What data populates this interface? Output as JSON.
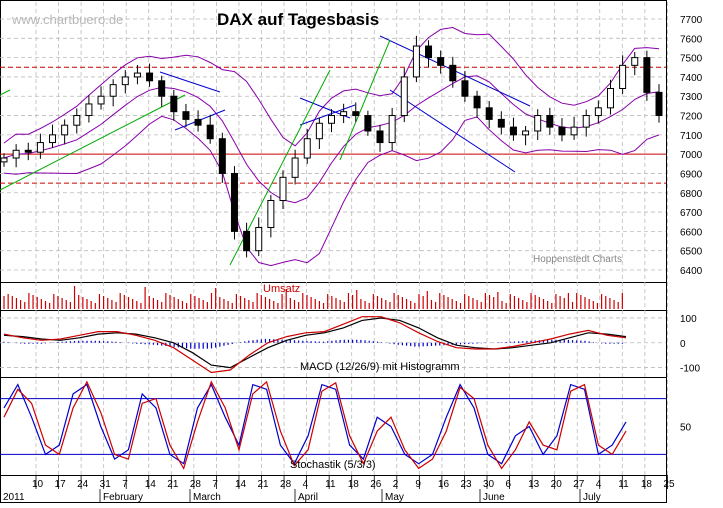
{
  "chart_data": [
    {
      "type": "candlestick",
      "title": "DAX auf Tagesbasis",
      "y_ticks": [
        6400,
        6500,
        6600,
        6700,
        6800,
        6900,
        7000,
        7100,
        7200,
        7300,
        7400,
        7500,
        7600,
        7700
      ],
      "ylim": [
        6400,
        7750
      ],
      "grid": true,
      "approx_closes": [
        6980,
        7020,
        7010,
        7060,
        7100,
        7150,
        7200,
        7260,
        7300,
        7360,
        7400,
        7420,
        7380,
        7300,
        7220,
        7180,
        7150,
        7080,
        6900,
        6600,
        6500,
        6620,
        6760,
        6880,
        6980,
        7080,
        7160,
        7200,
        7220,
        7200,
        7120,
        7060,
        7200,
        7400,
        7560,
        7500,
        7460,
        7380,
        7300,
        7240,
        7180,
        7140,
        7100,
        7120,
        7200,
        7140,
        7100,
        7140,
        7200,
        7240,
        7340,
        7460,
        7500,
        7320,
        7200
      ],
      "horizontal_levels": [
        {
          "value": 7450,
          "style": "dashed",
          "color": "#cc0000"
        },
        {
          "value": 7000,
          "style": "solid",
          "color": "#cc0000"
        },
        {
          "value": 6850,
          "style": "dashed",
          "color": "#cc0000"
        }
      ],
      "overlays": [
        "Bollinger bands (purple)",
        "trend lines (blue, green)"
      ]
    },
    {
      "type": "bar",
      "title": "Umsatz"
    },
    {
      "type": "line",
      "title": "MACD (12/26/9) mit Histogramm",
      "y_ticks": [
        100,
        0,
        -100
      ],
      "ylim": [
        -130,
        120
      ],
      "series": [
        {
          "color": "#000000",
          "values": [
            30,
            25,
            15,
            10,
            20,
            35,
            40,
            35,
            20,
            0,
            -40,
            -90,
            -100,
            -60,
            -20,
            10,
            30,
            40,
            60,
            90,
            100,
            90,
            60,
            20,
            -10,
            -20,
            -25,
            -20,
            -10,
            0,
            20,
            40,
            35,
            25
          ]
        },
        {
          "color": "#cc0000",
          "values": [
            35,
            20,
            10,
            15,
            30,
            45,
            45,
            30,
            10,
            -20,
            -70,
            -120,
            -110,
            -50,
            0,
            25,
            40,
            45,
            75,
            105,
            105,
            80,
            40,
            5,
            -20,
            -25,
            -25,
            -15,
            0,
            15,
            35,
            50,
            30,
            20
          ]
        }
      ]
    },
    {
      "type": "line",
      "title": "Stochastik (5/3/3)",
      "y_ticks": [
        50
      ],
      "ylim": [
        0,
        100
      ],
      "reference_levels": [
        80,
        20
      ],
      "series": [
        {
          "color": "#0000cc",
          "values": [
            70,
            95,
            60,
            20,
            30,
            85,
            95,
            50,
            15,
            25,
            85,
            70,
            20,
            10,
            70,
            95,
            60,
            30,
            95,
            90,
            30,
            10,
            40,
            95,
            90,
            30,
            15,
            60,
            50,
            20,
            10,
            20,
            60,
            95,
            70,
            20,
            10,
            40,
            50,
            20,
            40,
            95,
            90,
            20,
            30,
            55
          ]
        },
        {
          "color": "#cc0000",
          "values": [
            60,
            90,
            75,
            30,
            20,
            70,
            98,
            65,
            20,
            15,
            75,
            80,
            30,
            5,
            55,
            98,
            70,
            25,
            85,
            98,
            45,
            8,
            25,
            88,
            97,
            40,
            10,
            45,
            60,
            25,
            5,
            15,
            45,
            92,
            80,
            30,
            5,
            25,
            55,
            30,
            25,
            88,
            95,
            30,
            20,
            45
          ]
        }
      ]
    }
  ],
  "watermark": "www.chartbuero.de",
  "source_label": "Hoppenstedt Charts",
  "x_axis": {
    "day_ticks": [
      "10",
      "17",
      "24",
      "31",
      "7",
      "14",
      "21",
      "28",
      "7",
      "14",
      "21",
      "28",
      "4",
      "11",
      "18",
      "26",
      "2",
      "9",
      "16",
      "23",
      "30",
      "6",
      "13",
      "20",
      "27",
      "4",
      "11",
      "18",
      "25"
    ],
    "months": [
      "2011",
      "February",
      "March",
      "April",
      "May",
      "June",
      "July"
    ]
  },
  "colors": {
    "candle": "#000000",
    "bollinger": "#8800aa",
    "trendline": "#0000cc",
    "uptrend": "#00aa00",
    "level": "#cc0000",
    "volume": "#cc0000",
    "macd": "#000000",
    "signal": "#cc0000",
    "histogram": "#0000cc",
    "stoch_k": "#0000cc",
    "stoch_d": "#cc0000"
  }
}
